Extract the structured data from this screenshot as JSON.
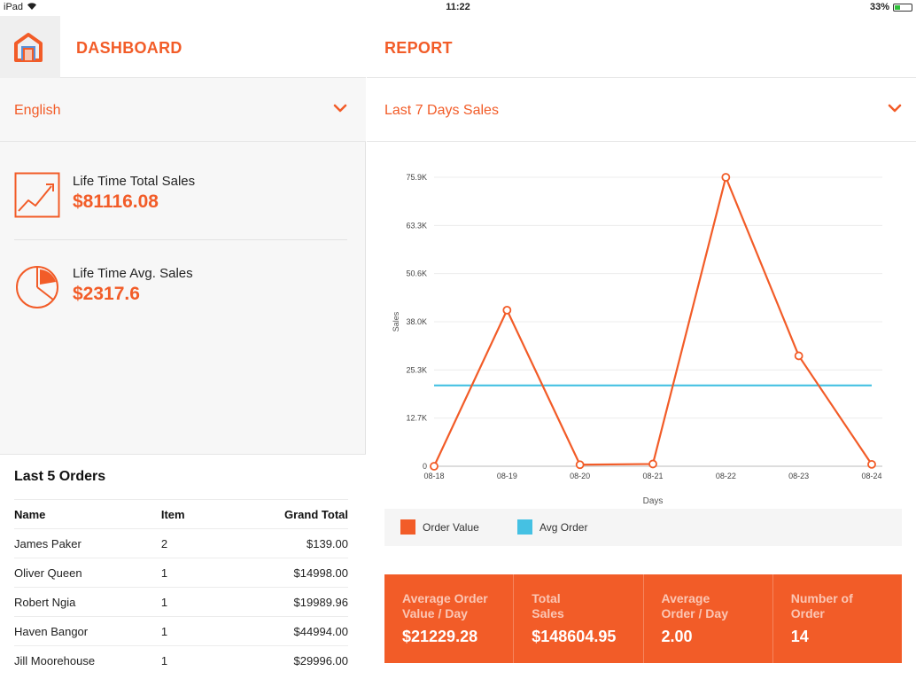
{
  "status_bar": {
    "device": "iPad",
    "time": "11:22",
    "battery": "33%",
    "battery_level": 0.33
  },
  "left": {
    "title": "DASHBOARD",
    "language": "English",
    "stats": [
      {
        "label": "Life Time Total Sales",
        "value": "$81116.08",
        "icon": "line-chart-icon"
      },
      {
        "label": "Life Time Avg. Sales",
        "value": "$2317.6",
        "icon": "pie-chart-icon"
      }
    ],
    "orders": {
      "title": "Last 5 Orders",
      "columns": [
        "Name",
        "Item",
        "Grand Total"
      ],
      "rows": [
        [
          "James Paker",
          "2",
          "$139.00"
        ],
        [
          "Oliver Queen",
          "1",
          "$14998.00"
        ],
        [
          "Robert Ngia",
          "1",
          "$19989.96"
        ],
        [
          "Haven Bangor",
          "1",
          "$44994.00"
        ],
        [
          "Jill Moorehouse",
          "1",
          "$29996.00"
        ]
      ]
    }
  },
  "right": {
    "title": "REPORT",
    "range": "Last 7 Days Sales",
    "summary": [
      {
        "label": "Average Order\nValue / Day",
        "value": "$21229.28"
      },
      {
        "label": "Total\nSales",
        "value": "$148604.95"
      },
      {
        "label": "Average\nOrder / Day",
        "value": "2.00"
      },
      {
        "label": "Number of\nOrder",
        "value": "14"
      }
    ]
  },
  "colors": {
    "accent": "#f25c28",
    "avg_line": "#45c1e3"
  },
  "chart_data": {
    "type": "line",
    "x": [
      "08-18",
      "08-19",
      "08-20",
      "08-21",
      "08-22",
      "08-23",
      "08-24"
    ],
    "series": [
      {
        "name": "Order Value",
        "values": [
          0,
          41000,
          400,
          600,
          75900,
          29000,
          500
        ],
        "color": "#f25c28",
        "markers": true
      },
      {
        "name": "Avg Order",
        "values": [
          21229.28,
          21229.28,
          21229.28,
          21229.28,
          21229.28,
          21229.28,
          21229.28
        ],
        "color": "#45c1e3",
        "markers": false
      }
    ],
    "ytick_values": [
      0,
      12650,
      25300,
      37950,
      50600,
      63250,
      75900
    ],
    "ytick_labels": [
      "0",
      "12.7K",
      "25.3K",
      "38.0K",
      "50.6K",
      "63.3K",
      "75.9K"
    ],
    "ylim": [
      0,
      75900
    ],
    "xlabel": "Days",
    "ylabel": "Sales",
    "grid": true,
    "legend": "bottom"
  }
}
